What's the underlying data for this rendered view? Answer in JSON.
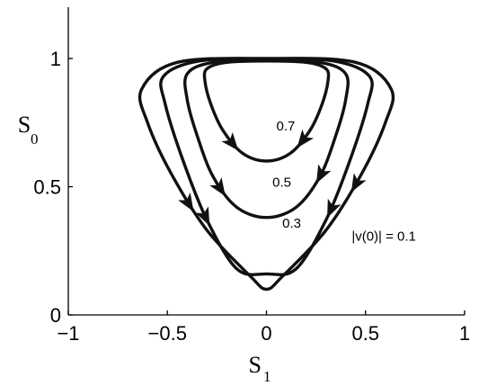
{
  "chart_data": {
    "type": "line",
    "xlabel": {
      "main": "S",
      "sub": "1"
    },
    "ylabel": {
      "main": "S",
      "sub": "0"
    },
    "xlim": [
      -1,
      1
    ],
    "ylim": [
      0,
      1.2
    ],
    "xticks": [
      {
        "v": -1,
        "label": "−1"
      },
      {
        "v": -0.5,
        "label": "−0.5"
      },
      {
        "v": 0,
        "label": "0"
      },
      {
        "v": 0.5,
        "label": "0.5"
      },
      {
        "v": 1,
        "label": "1"
      }
    ],
    "yticks": [
      {
        "v": 0,
        "label": "0"
      },
      {
        "v": 0.5,
        "label": "0.5"
      },
      {
        "v": 1,
        "label": "1"
      }
    ],
    "grid": false,
    "series": [
      {
        "id": "orbit-0.7",
        "points": [
          [
            0.0,
            0.6
          ],
          [
            0.12,
            0.63
          ],
          [
            0.22,
            0.72
          ],
          [
            0.28,
            0.82
          ],
          [
            0.31,
            0.91
          ],
          [
            0.3,
            0.96
          ],
          [
            0.2,
            0.985
          ],
          [
            0.0,
            0.99
          ],
          [
            -0.2,
            0.985
          ],
          [
            -0.3,
            0.96
          ],
          [
            -0.31,
            0.91
          ],
          [
            -0.28,
            0.82
          ],
          [
            -0.22,
            0.72
          ],
          [
            -0.12,
            0.63
          ],
          [
            0.0,
            0.6
          ]
        ],
        "arrows": [
          {
            "x": -0.17,
            "y": 0.67,
            "dir": 1
          },
          {
            "x": 0.19,
            "y": 0.68,
            "dir": -1
          }
        ]
      },
      {
        "id": "orbit-0.5",
        "points": [
          [
            0.0,
            0.38
          ],
          [
            0.15,
            0.42
          ],
          [
            0.27,
            0.54
          ],
          [
            0.35,
            0.7
          ],
          [
            0.4,
            0.84
          ],
          [
            0.4,
            0.94
          ],
          [
            0.27,
            0.985
          ],
          [
            0.0,
            0.995
          ],
          [
            -0.27,
            0.985
          ],
          [
            -0.4,
            0.94
          ],
          [
            -0.4,
            0.84
          ],
          [
            -0.35,
            0.7
          ],
          [
            -0.27,
            0.54
          ],
          [
            -0.15,
            0.42
          ],
          [
            0.0,
            0.38
          ]
        ],
        "arrows": [
          {
            "x": -0.22,
            "y": 0.5,
            "dir": 1
          },
          {
            "x": 0.27,
            "y": 0.55,
            "dir": -1
          }
        ]
      },
      {
        "id": "orbit-0.3",
        "points": [
          [
            0.0,
            0.16
          ],
          [
            0.15,
            0.18
          ],
          [
            0.3,
            0.37
          ],
          [
            0.42,
            0.6
          ],
          [
            0.51,
            0.82
          ],
          [
            0.52,
            0.93
          ],
          [
            0.34,
            0.99
          ],
          [
            0.0,
            0.998
          ],
          [
            -0.34,
            0.99
          ],
          [
            -0.52,
            0.93
          ],
          [
            -0.51,
            0.82
          ],
          [
            -0.42,
            0.6
          ],
          [
            -0.3,
            0.37
          ],
          [
            -0.15,
            0.18
          ],
          [
            0.0,
            0.16
          ]
        ],
        "arrows": [
          {
            "x": -0.27,
            "y": 0.4,
            "dir": 1
          },
          {
            "x": 0.31,
            "y": 0.42,
            "dir": -1
          }
        ]
      },
      {
        "id": "orbit-0.1",
        "points": [
          [
            0.0,
            0.1
          ],
          [
            0.08,
            0.15
          ],
          [
            0.3,
            0.33
          ],
          [
            0.48,
            0.55
          ],
          [
            0.6,
            0.75
          ],
          [
            0.63,
            0.88
          ],
          [
            0.45,
            0.985
          ],
          [
            0.0,
            1.0
          ],
          [
            -0.45,
            0.985
          ],
          [
            -0.63,
            0.88
          ],
          [
            -0.6,
            0.75
          ],
          [
            -0.48,
            0.55
          ],
          [
            -0.3,
            0.33
          ],
          [
            -0.08,
            0.15
          ],
          [
            0.0,
            0.1
          ]
        ],
        "arrows": [
          {
            "x": -0.39,
            "y": 0.44,
            "dir": 1
          },
          {
            "x": 0.47,
            "y": 0.5,
            "dir": -1
          }
        ]
      }
    ],
    "annotations": [
      {
        "text": "0.7",
        "x": 0.05,
        "y": 0.72
      },
      {
        "text": "0.5",
        "x": 0.03,
        "y": 0.5
      },
      {
        "text": "0.3",
        "x": 0.08,
        "y": 0.34
      },
      {
        "text": "|v(0)| = 0.1",
        "x": 0.43,
        "y": 0.29
      }
    ]
  }
}
